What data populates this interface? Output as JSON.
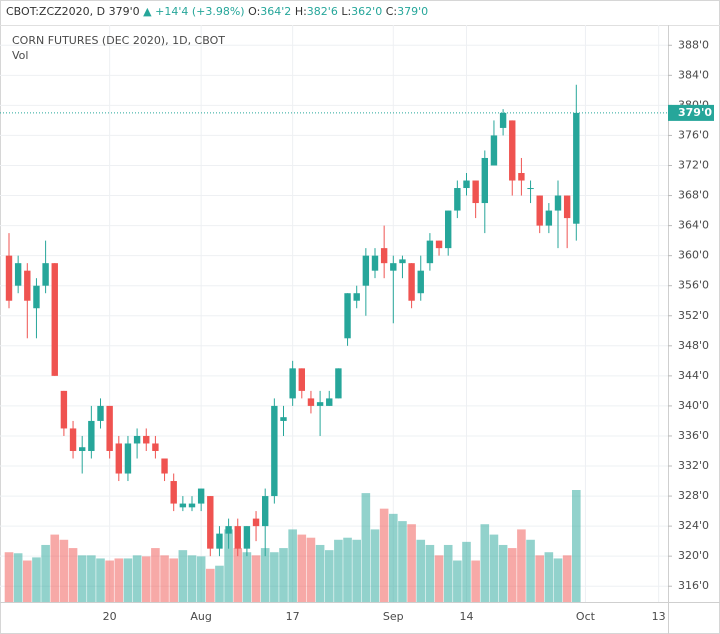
{
  "chart_data": {
    "type": "candlestick",
    "header": {
      "symbol": "CBOT:ZCZ2020, D",
      "last": "379'0",
      "change": "+14'4 (+3.98%)",
      "o_label": "O:",
      "o": "364'2",
      "h_label": "H:",
      "h": "382'6",
      "l_label": "L:",
      "l": "362'0",
      "c_label": "C:",
      "c": "379'0"
    },
    "title": "CORN FUTURES (DEC 2020), 1D, CBOT",
    "volume_label": "Vol",
    "categories": [
      null,
      null,
      null,
      null,
      null,
      null,
      null,
      null,
      null,
      null,
      null,
      "20",
      null,
      null,
      null,
      null,
      null,
      null,
      null,
      null,
      null,
      "Aug",
      null,
      null,
      null,
      null,
      null,
      null,
      null,
      null,
      null,
      "17",
      null,
      null,
      null,
      null,
      null,
      null,
      null,
      null,
      null,
      null,
      "Sep",
      null,
      null,
      null,
      null,
      null,
      null,
      null,
      "14",
      null,
      null,
      null,
      null,
      null,
      null,
      null,
      null,
      null,
      null,
      null,
      null,
      "Oct",
      null,
      null,
      null,
      null,
      null,
      null,
      null,
      "13"
    ],
    "open": [
      360,
      356,
      358,
      353,
      356,
      359,
      342,
      337,
      334,
      334,
      338,
      340,
      335,
      331,
      335,
      336,
      335,
      333,
      330,
      326.5,
      326.5,
      327,
      328,
      321,
      323,
      324,
      321,
      325,
      324,
      328,
      338,
      341,
      345,
      341,
      340,
      340,
      341,
      349,
      354,
      356,
      358,
      361,
      358,
      359,
      359,
      355,
      359,
      362,
      361,
      366,
      369,
      370,
      367,
      372,
      377,
      378,
      371,
      369,
      368,
      364,
      366,
      368,
      364.25,
      null,
      null,
      null,
      null,
      null,
      null,
      null,
      null,
      null
    ],
    "high": [
      363,
      360,
      359,
      357,
      362,
      359,
      342,
      338,
      336,
      340,
      341,
      340,
      336,
      336,
      337,
      337,
      336,
      333,
      331,
      328,
      328,
      329,
      328,
      324,
      325,
      325,
      324,
      326,
      329,
      341,
      340,
      346,
      345,
      342,
      342,
      342,
      345,
      355,
      356,
      361,
      361,
      364,
      360,
      360,
      359,
      360,
      363,
      362,
      366,
      370,
      371,
      370,
      374,
      378,
      379.5,
      378,
      373,
      370,
      368,
      367,
      370,
      368,
      382.75,
      null,
      null,
      null,
      null,
      null,
      null,
      null,
      null,
      null
    ],
    "low": [
      353,
      355,
      349,
      349,
      355,
      344,
      336,
      333,
      331,
      333,
      337,
      333,
      330,
      330,
      333,
      334,
      333,
      330,
      326,
      326,
      326,
      326,
      320,
      320,
      321,
      320,
      320,
      322,
      320,
      327,
      336,
      340,
      341,
      339,
      336,
      340,
      341,
      348,
      353,
      352,
      357,
      357,
      351,
      357,
      353,
      354,
      358,
      360,
      360,
      365,
      368,
      365,
      363,
      372,
      376,
      368,
      368,
      367,
      363,
      363,
      361,
      361,
      362,
      null,
      null,
      null,
      null,
      null,
      null,
      null,
      null,
      null
    ],
    "close": [
      354,
      359,
      354,
      356,
      359,
      344,
      337,
      334,
      334.5,
      338,
      340,
      334,
      331,
      335,
      336,
      335,
      334,
      331,
      327,
      327,
      327,
      329,
      321,
      323,
      324,
      321,
      324,
      324,
      328,
      340,
      338.5,
      345,
      342,
      340,
      340.5,
      341,
      345,
      355,
      355,
      360,
      360,
      359,
      359,
      359.5,
      354,
      358,
      362,
      361,
      366,
      369,
      370,
      367,
      373,
      376,
      379,
      370,
      370,
      369,
      364,
      366,
      368,
      365,
      379,
      null,
      null,
      null,
      null,
      null,
      null,
      null,
      null,
      null
    ],
    "volume": [
      48,
      47,
      40,
      43,
      55,
      65,
      60,
      52,
      45,
      45,
      42,
      40,
      42,
      42,
      45,
      44,
      52,
      45,
      42,
      50,
      45,
      44,
      32,
      35,
      70,
      52,
      48,
      45,
      52,
      48,
      52,
      70,
      65,
      62,
      55,
      50,
      60,
      62,
      60,
      105,
      70,
      90,
      85,
      78,
      75,
      60,
      55,
      45,
      55,
      40,
      58,
      40,
      75,
      65,
      55,
      52,
      70,
      60,
      45,
      48,
      42,
      45,
      108,
      null,
      null,
      null,
      null,
      null,
      null,
      null,
      null,
      null
    ],
    "up_color": "#26a69a",
    "down_color": "#ef5350",
    "current_price": {
      "value": 379,
      "label": "379'0"
    },
    "ylim": [
      313.9,
      390.3
    ],
    "yticks": [
      {
        "value": 388,
        "label": "388'0"
      },
      {
        "value": 384,
        "label": "384'0"
      },
      {
        "value": 380,
        "label": "380'0"
      },
      {
        "value": 376,
        "label": "376'0"
      },
      {
        "value": 372,
        "label": "372'0"
      },
      {
        "value": 368,
        "label": "368'0"
      },
      {
        "value": 364,
        "label": "364'0"
      },
      {
        "value": 360,
        "label": "360'0"
      },
      {
        "value": 356,
        "label": "356'0"
      },
      {
        "value": 352,
        "label": "352'0"
      },
      {
        "value": 348,
        "label": "348'0"
      },
      {
        "value": 344,
        "label": "344'0"
      },
      {
        "value": 340,
        "label": "340'0"
      },
      {
        "value": 336,
        "label": "336'0"
      },
      {
        "value": 332,
        "label": "332'0"
      },
      {
        "value": 328,
        "label": "328'0"
      },
      {
        "value": 324,
        "label": "324'0"
      },
      {
        "value": 320,
        "label": "320'0"
      },
      {
        "value": 316,
        "label": "316'0"
      }
    ],
    "grid": true
  }
}
